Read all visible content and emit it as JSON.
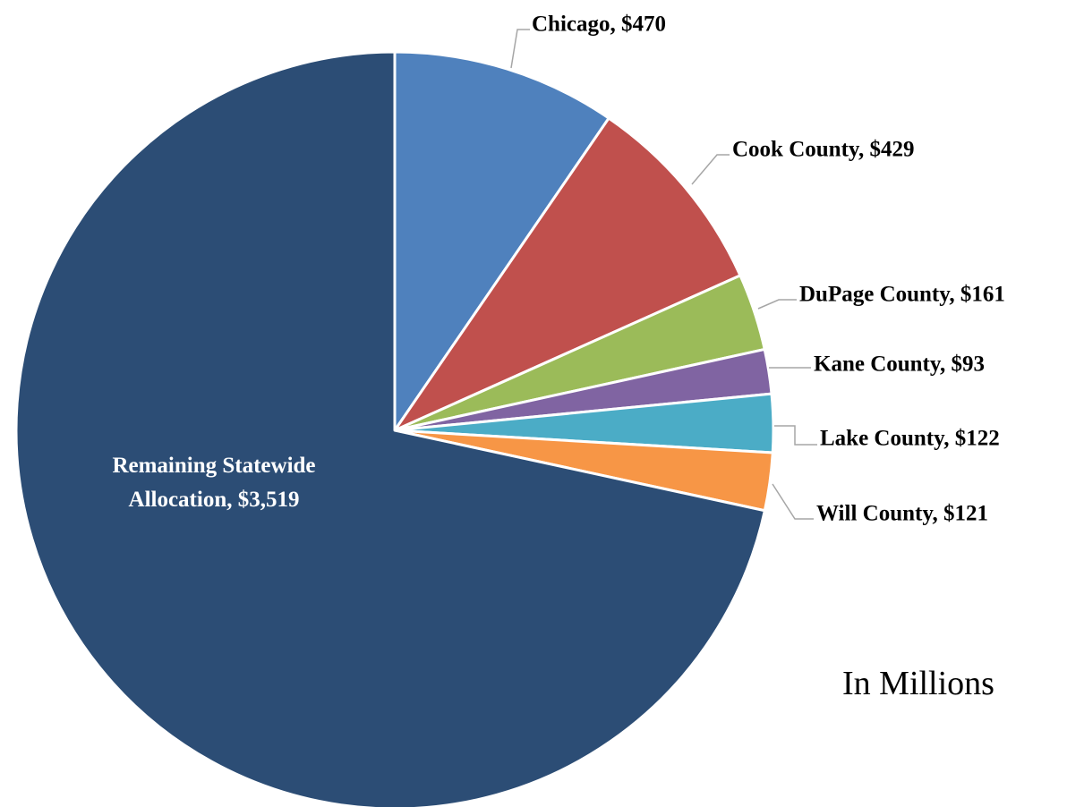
{
  "chart_data": {
    "type": "pie",
    "unit_note": "In Millions",
    "start_angle_deg": 0,
    "direction": "clockwise",
    "slices": [
      {
        "name": "Chicago",
        "value": 470,
        "label": "Chicago, $470",
        "color": "#4F81BD",
        "label_position": "outside"
      },
      {
        "name": "Cook County",
        "value": 429,
        "label": "Cook County, $429",
        "color": "#C0504D",
        "label_position": "outside"
      },
      {
        "name": "DuPage County",
        "value": 161,
        "label": "DuPage County, $161",
        "color": "#9BBB59",
        "label_position": "outside"
      },
      {
        "name": "Kane County",
        "value": 93,
        "label": "Kane County, $93",
        "color": "#8064A2",
        "label_position": "outside"
      },
      {
        "name": "Lake County",
        "value": 122,
        "label": "Lake County, $122",
        "color": "#4BACC6",
        "label_position": "outside"
      },
      {
        "name": "Will County",
        "value": 121,
        "label": "Will County, $121",
        "color": "#F79646",
        "label_position": "outside"
      },
      {
        "name": "Remaining Statewide Allocation",
        "value": 3519,
        "label_lines": [
          "Remaining Statewide",
          "Allocation, $3,519"
        ],
        "color": "#2C4D75",
        "label_position": "inside"
      }
    ]
  }
}
